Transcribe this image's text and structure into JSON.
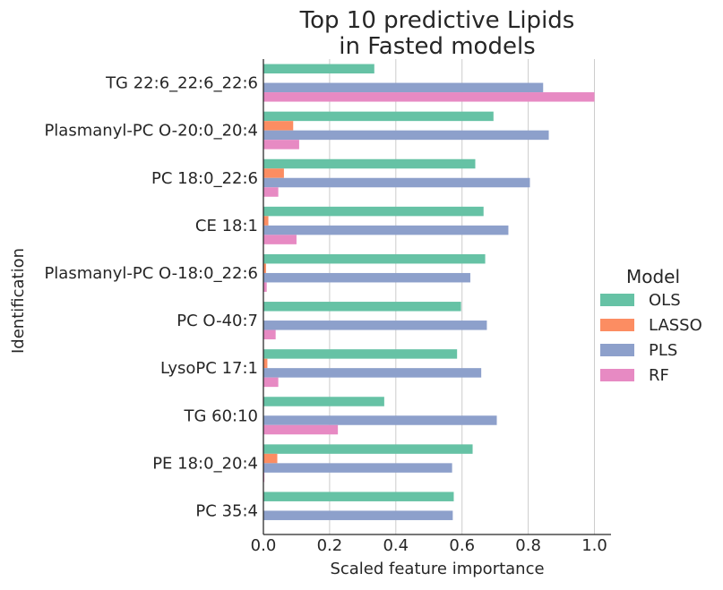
{
  "chart_data": {
    "type": "bar",
    "orientation": "horizontal",
    "title_lines": [
      "Top 10 predictive Lipids",
      "in Fasted models"
    ],
    "xlabel": "Scaled feature importance",
    "ylabel": "Identification",
    "xlim": [
      0.0,
      1.05
    ],
    "xticks": [
      "0.0",
      "0.2",
      "0.4",
      "0.6",
      "0.8",
      "1.0"
    ],
    "grid": "vertical",
    "legend": {
      "title": "Model",
      "placement": "center-right, outside plot"
    },
    "categories": [
      "TG 22:6_22:6_22:6",
      "Plasmanyl-PC O-20:0_20:4",
      "PC 18:0_22:6",
      "CE 18:1",
      "Plasmanyl-PC O-18:0_22:6",
      "PC O-40:7",
      "LysoPC 17:1",
      "TG 60:10",
      "PE 18:0_20:4",
      "PC 35:4"
    ],
    "series": [
      {
        "name": "OLS",
        "color": "#66c2a5",
        "values": [
          0.335,
          0.695,
          0.64,
          0.665,
          0.67,
          0.597,
          0.585,
          0.365,
          0.632,
          0.575
        ]
      },
      {
        "name": "LASSO",
        "color": "#fc8d62",
        "values": [
          0.0,
          0.09,
          0.062,
          0.015,
          0.008,
          0.0,
          0.012,
          0.0,
          0.042,
          0.0
        ]
      },
      {
        "name": "PLS",
        "color": "#8da0cb",
        "values": [
          0.845,
          0.862,
          0.805,
          0.74,
          0.625,
          0.675,
          0.658,
          0.705,
          0.57,
          0.572
        ]
      },
      {
        "name": "RF",
        "color": "#e78ac3",
        "values": [
          1.0,
          0.108,
          0.045,
          0.1,
          0.01,
          0.037,
          0.045,
          0.225,
          0.003,
          0.0
        ]
      }
    ]
  }
}
